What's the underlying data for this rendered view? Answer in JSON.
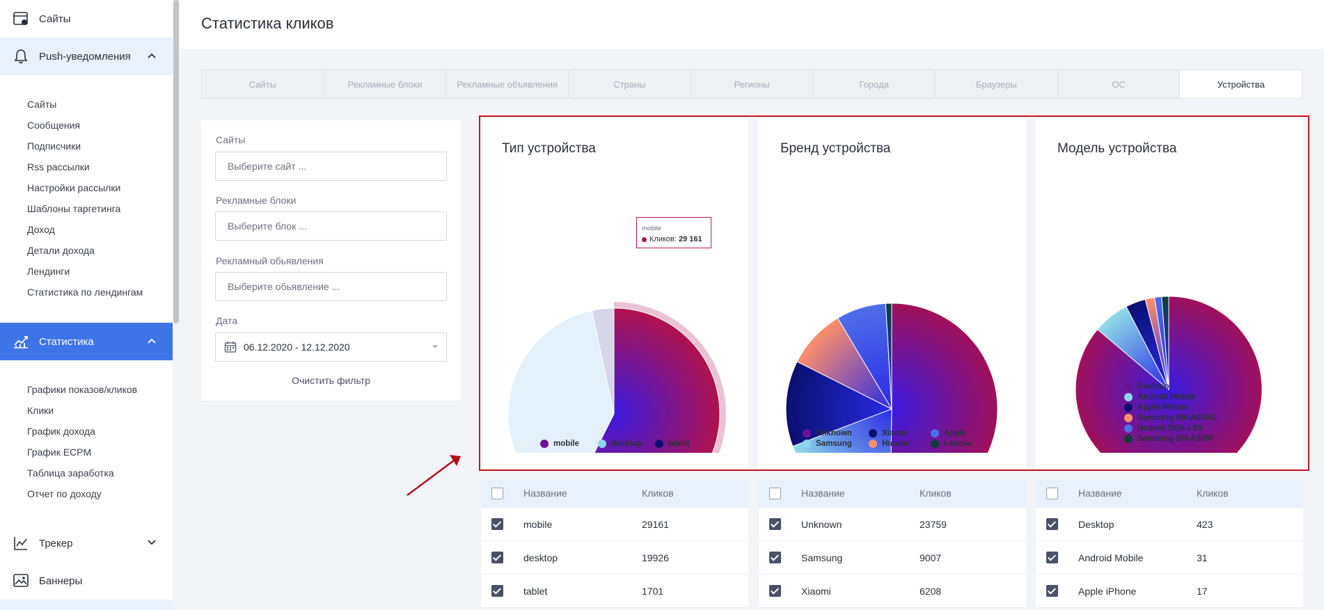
{
  "sidebar": {
    "top_item": {
      "label": "Сайты",
      "icon": "sites-icon"
    },
    "push": {
      "label": "Push-уведомления",
      "icon": "bell-icon",
      "expanded": true
    },
    "push_items": [
      "Сайты",
      "Сообщения",
      "Подписчики",
      "Rss рассылки",
      "Настройки рассылки",
      "Шаблоны таргетинга",
      "Доход",
      "Детали дохода",
      "Лендинги",
      "Статистика по лендингам"
    ],
    "stats": {
      "label": "Статистика",
      "icon": "chart-icon",
      "expanded": true
    },
    "stats_items": [
      "Графики показов/кликов",
      "Клики",
      "График дохода",
      "График ECPM",
      "Таблица заработка",
      "Отчет по доходу"
    ],
    "tracker": {
      "label": "Трекер",
      "icon": "tracker-icon"
    },
    "banners": {
      "label": "Баннеры",
      "icon": "image-icon"
    }
  },
  "header": {
    "title": "Статистика кликов"
  },
  "tabs": [
    "Сайты",
    "Рекламные блоки",
    "Рекламные объявления",
    "Страны",
    "Регионы",
    "Города",
    "Браузеры",
    "ОС",
    "Устройства"
  ],
  "active_tab": "Устройства",
  "filters": {
    "sites": {
      "label": "Сайты",
      "placeholder": "Выберите сайт ..."
    },
    "blocks": {
      "label": "Рекламные блоки",
      "placeholder": "Выберите блок ..."
    },
    "ads": {
      "label": "Рекламный обьявления",
      "placeholder": "Выберите обьявление ..."
    },
    "date": {
      "label": "Дата",
      "value": "06.12.2020 - 12.12.2020"
    },
    "clear": "Очистить фильтр"
  },
  "colors": {
    "accent": "#3f74e9",
    "highlight": "#c0141c"
  },
  "chart_data": [
    {
      "type": "pie",
      "title": "Тип устройства",
      "categories": [
        "mobile",
        "desktop",
        "tablet"
      ],
      "values": [
        29161,
        19926,
        1701
      ],
      "colors": [
        "#b0124c",
        "#e4f1fb",
        "#d6d6e8"
      ],
      "legend": "bottom",
      "tooltip": {
        "series": "mobile",
        "label": "Кликов:",
        "value": "29 161"
      }
    },
    {
      "type": "pie",
      "title": "Бренд устройства",
      "categories": [
        "Unknown",
        "Samsung",
        "Xiaomi",
        "Huawei",
        "Apple",
        "Lenovo"
      ],
      "values": [
        23759,
        9007,
        6208,
        4300,
        3600,
        430
      ],
      "colors": [
        "#a0105a",
        "#8fdde8",
        "#0a1070",
        "#ff8f6b",
        "#4e6ee8",
        "#0f3d3d"
      ],
      "legend": "bottom"
    },
    {
      "type": "pie",
      "title": "Модель устройства",
      "categories": [
        "Desktop",
        "Android Mobile",
        "Apple iPhone",
        "Samsung SM-A600G",
        "Huawei DUA-LX9",
        "Samsung SM-A105F"
      ],
      "values": [
        423,
        31,
        17,
        8,
        6,
        6
      ],
      "colors": [
        "#a0105a",
        "#8fdde8",
        "#0a1070",
        "#ff8f6b",
        "#4e6ee8",
        "#0f3d3d"
      ],
      "legend": "bottom"
    }
  ],
  "tables": {
    "headers": {
      "name": "Название",
      "clicks": "Кликов"
    },
    "device_type": [
      {
        "name": "mobile",
        "clicks": "29161"
      },
      {
        "name": "desktop",
        "clicks": "19926"
      },
      {
        "name": "tablet",
        "clicks": "1701"
      }
    ],
    "device_brand": [
      {
        "name": "Unknown",
        "clicks": "23759"
      },
      {
        "name": "Samsung",
        "clicks": "9007"
      },
      {
        "name": "Xiaomi",
        "clicks": "6208"
      }
    ],
    "device_model": [
      {
        "name": "Desktop",
        "clicks": "423"
      },
      {
        "name": "Android Mobile",
        "clicks": "31"
      },
      {
        "name": "Apple iPhone",
        "clicks": "17"
      }
    ]
  }
}
